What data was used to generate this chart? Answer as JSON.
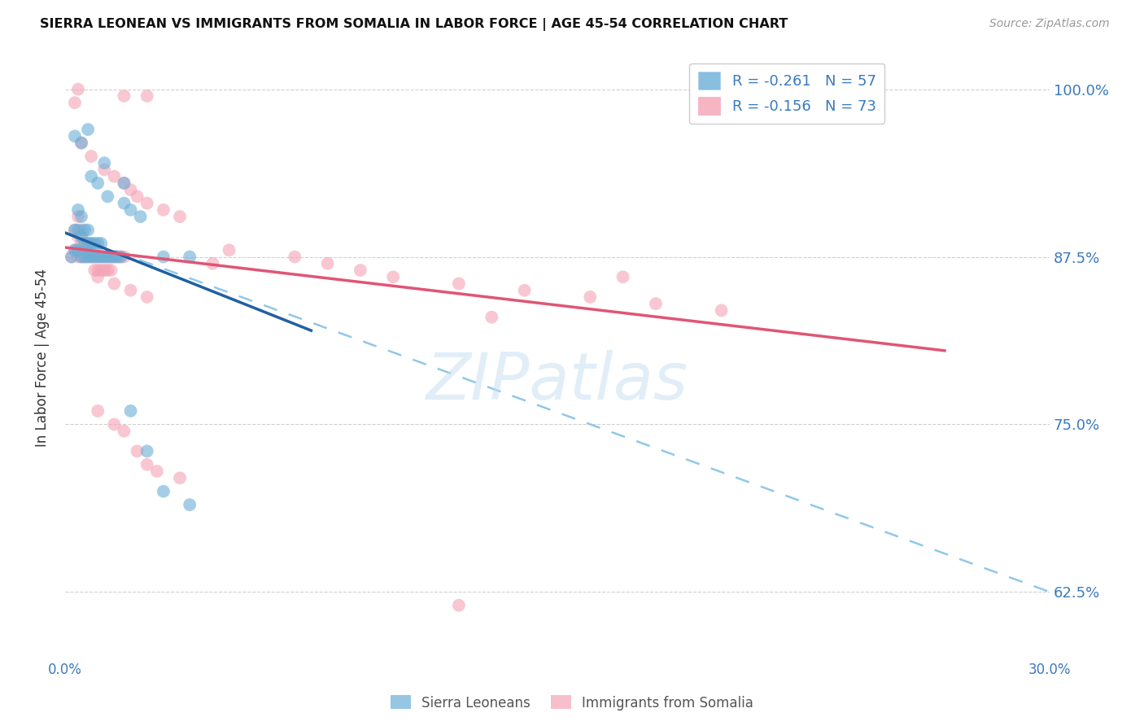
{
  "title": "SIERRA LEONEAN VS IMMIGRANTS FROM SOMALIA IN LABOR FORCE | AGE 45-54 CORRELATION CHART",
  "source": "Source: ZipAtlas.com",
  "ylabel": "In Labor Force | Age 45-54",
  "xlim": [
    0.0,
    0.3
  ],
  "ylim": [
    0.575,
    1.025
  ],
  "yticks": [
    0.625,
    0.75,
    0.875,
    1.0
  ],
  "ytick_labels": [
    "62.5%",
    "75.0%",
    "87.5%",
    "100.0%"
  ],
  "xticks": [
    0.0,
    0.05,
    0.1,
    0.15,
    0.2,
    0.25,
    0.3
  ],
  "xtick_labels": [
    "0.0%",
    "",
    "",
    "",
    "",
    "",
    "30.0%"
  ],
  "legend_r1": "R = -0.261",
  "legend_n1": "N = 57",
  "legend_r2": "R = -0.156",
  "legend_n2": "N = 73",
  "color_blue": "#6aaed6",
  "color_pink": "#f4a3b5",
  "color_blue_line": "#2060a0",
  "color_pink_line": "#e05575",
  "color_blue_dashed": "#90c8e8",
  "watermark": "ZIPatlas",
  "blue_scatter": [
    [
      0.002,
      0.875
    ],
    [
      0.003,
      0.88
    ],
    [
      0.003,
      0.895
    ],
    [
      0.004,
      0.88
    ],
    [
      0.004,
      0.895
    ],
    [
      0.004,
      0.91
    ],
    [
      0.005,
      0.875
    ],
    [
      0.005,
      0.89
    ],
    [
      0.005,
      0.905
    ],
    [
      0.006,
      0.875
    ],
    [
      0.006,
      0.885
    ],
    [
      0.006,
      0.895
    ],
    [
      0.007,
      0.875
    ],
    [
      0.007,
      0.885
    ],
    [
      0.007,
      0.895
    ],
    [
      0.008,
      0.875
    ],
    [
      0.008,
      0.885
    ],
    [
      0.009,
      0.875
    ],
    [
      0.009,
      0.885
    ],
    [
      0.01,
      0.875
    ],
    [
      0.01,
      0.885
    ],
    [
      0.011,
      0.875
    ],
    [
      0.011,
      0.885
    ],
    [
      0.012,
      0.875
    ],
    [
      0.013,
      0.875
    ],
    [
      0.014,
      0.875
    ],
    [
      0.015,
      0.875
    ],
    [
      0.016,
      0.875
    ],
    [
      0.017,
      0.875
    ],
    [
      0.003,
      0.965
    ],
    [
      0.008,
      0.935
    ],
    [
      0.01,
      0.93
    ],
    [
      0.013,
      0.92
    ],
    [
      0.018,
      0.915
    ],
    [
      0.02,
      0.91
    ],
    [
      0.023,
      0.905
    ],
    [
      0.03,
      0.875
    ],
    [
      0.038,
      0.875
    ],
    [
      0.005,
      0.96
    ],
    [
      0.012,
      0.945
    ],
    [
      0.018,
      0.93
    ],
    [
      0.007,
      0.97
    ],
    [
      0.02,
      0.76
    ],
    [
      0.025,
      0.73
    ],
    [
      0.03,
      0.7
    ],
    [
      0.038,
      0.69
    ]
  ],
  "pink_scatter": [
    [
      0.002,
      0.875
    ],
    [
      0.003,
      0.88
    ],
    [
      0.003,
      0.895
    ],
    [
      0.004,
      0.875
    ],
    [
      0.004,
      0.89
    ],
    [
      0.004,
      0.905
    ],
    [
      0.005,
      0.875
    ],
    [
      0.005,
      0.885
    ],
    [
      0.005,
      0.895
    ],
    [
      0.006,
      0.875
    ],
    [
      0.006,
      0.885
    ],
    [
      0.007,
      0.875
    ],
    [
      0.007,
      0.885
    ],
    [
      0.008,
      0.875
    ],
    [
      0.008,
      0.885
    ],
    [
      0.009,
      0.875
    ],
    [
      0.009,
      0.865
    ],
    [
      0.01,
      0.875
    ],
    [
      0.01,
      0.865
    ],
    [
      0.011,
      0.875
    ],
    [
      0.011,
      0.865
    ],
    [
      0.012,
      0.875
    ],
    [
      0.012,
      0.865
    ],
    [
      0.013,
      0.875
    ],
    [
      0.013,
      0.865
    ],
    [
      0.014,
      0.875
    ],
    [
      0.014,
      0.865
    ],
    [
      0.015,
      0.875
    ],
    [
      0.016,
      0.875
    ],
    [
      0.017,
      0.875
    ],
    [
      0.018,
      0.875
    ],
    [
      0.003,
      0.99
    ],
    [
      0.004,
      1.0
    ],
    [
      0.018,
      0.995
    ],
    [
      0.025,
      0.995
    ],
    [
      0.005,
      0.96
    ],
    [
      0.008,
      0.95
    ],
    [
      0.012,
      0.94
    ],
    [
      0.015,
      0.935
    ],
    [
      0.018,
      0.93
    ],
    [
      0.02,
      0.925
    ],
    [
      0.022,
      0.92
    ],
    [
      0.025,
      0.915
    ],
    [
      0.03,
      0.91
    ],
    [
      0.035,
      0.905
    ],
    [
      0.01,
      0.86
    ],
    [
      0.015,
      0.855
    ],
    [
      0.02,
      0.85
    ],
    [
      0.025,
      0.845
    ],
    [
      0.01,
      0.76
    ],
    [
      0.015,
      0.75
    ],
    [
      0.018,
      0.745
    ],
    [
      0.022,
      0.73
    ],
    [
      0.025,
      0.72
    ],
    [
      0.028,
      0.715
    ],
    [
      0.035,
      0.71
    ],
    [
      0.05,
      0.88
    ],
    [
      0.07,
      0.875
    ],
    [
      0.08,
      0.87
    ],
    [
      0.09,
      0.865
    ],
    [
      0.1,
      0.86
    ],
    [
      0.12,
      0.855
    ],
    [
      0.14,
      0.85
    ],
    [
      0.16,
      0.845
    ],
    [
      0.18,
      0.84
    ],
    [
      0.2,
      0.835
    ],
    [
      0.13,
      0.83
    ],
    [
      0.12,
      0.615
    ],
    [
      0.045,
      0.87
    ],
    [
      0.17,
      0.86
    ]
  ],
  "blue_line_x": [
    0.0,
    0.075
  ],
  "blue_line_y": [
    0.893,
    0.82
  ],
  "pink_line_x": [
    0.0,
    0.268
  ],
  "pink_line_y": [
    0.882,
    0.805
  ],
  "dashed_line_x": [
    0.0,
    0.3
  ],
  "dashed_line_y": [
    0.893,
    0.625
  ]
}
